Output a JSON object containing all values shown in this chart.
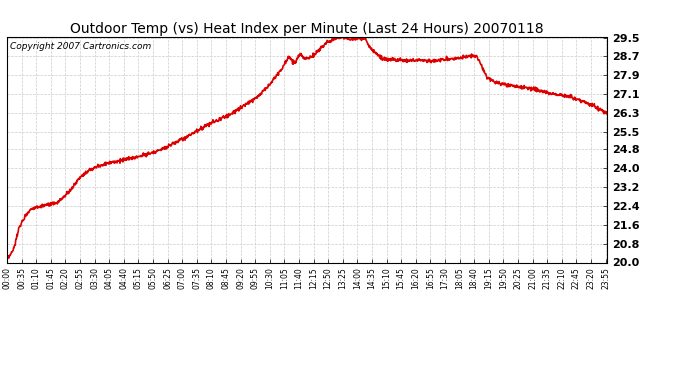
{
  "title": "Outdoor Temp (vs) Heat Index per Minute (Last 24 Hours) 20070118",
  "copyright": "Copyright 2007 Cartronics.com",
  "line_color": "#dd0000",
  "line_width": 1.2,
  "background_color": "#ffffff",
  "plot_bg_color": "#ffffff",
  "grid_color": "#cccccc",
  "grid_style": "--",
  "ylim": [
    20.0,
    29.5
  ],
  "yticks": [
    20.0,
    20.8,
    21.6,
    22.4,
    23.2,
    24.0,
    24.8,
    25.5,
    26.3,
    27.1,
    27.9,
    28.7,
    29.5
  ],
  "xtick_labels": [
    "00:00",
    "00:35",
    "01:10",
    "01:45",
    "02:20",
    "02:55",
    "03:30",
    "04:05",
    "04:40",
    "05:15",
    "05:50",
    "06:25",
    "07:00",
    "07:35",
    "08:10",
    "08:45",
    "09:20",
    "09:55",
    "10:30",
    "11:05",
    "11:40",
    "12:15",
    "12:50",
    "13:25",
    "14:00",
    "14:35",
    "15:10",
    "15:45",
    "16:20",
    "16:55",
    "17:30",
    "18:05",
    "18:40",
    "19:15",
    "19:50",
    "20:25",
    "21:00",
    "21:35",
    "22:10",
    "22:45",
    "23:20",
    "23:55"
  ],
  "num_points": 1440,
  "figwidth": 6.9,
  "figheight": 3.75,
  "title_fontsize": 10,
  "ytick_fontsize": 8,
  "xtick_fontsize": 5.5,
  "copyright_fontsize": 6.5
}
